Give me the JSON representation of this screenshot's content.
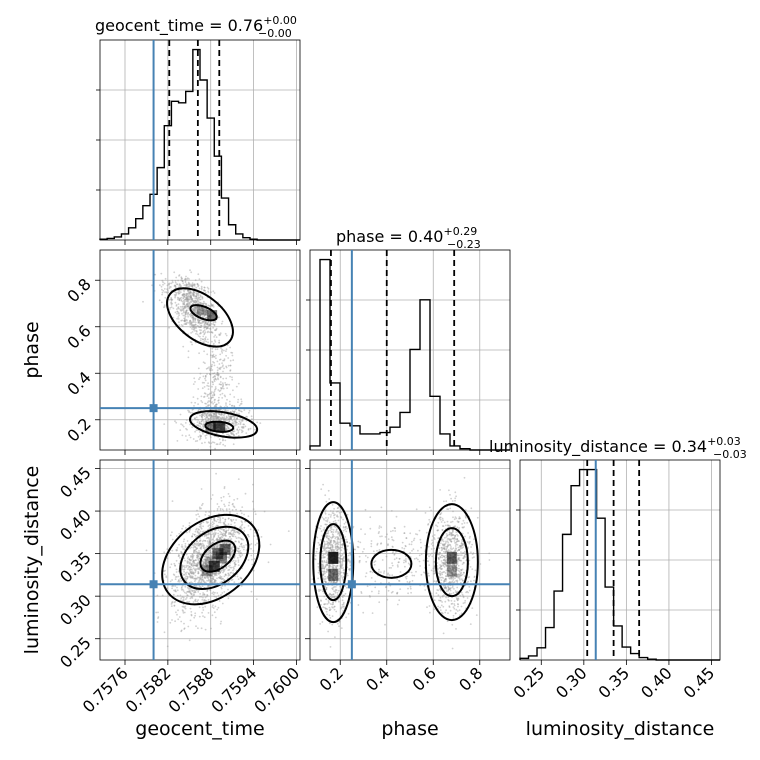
{
  "chart_data": {
    "type": "corner",
    "parameters": [
      "geocent_time",
      "phase",
      "luminosity_distance"
    ],
    "truths": {
      "geocent_time": 0.758,
      "phase": 0.25,
      "luminosity_distance": 0.314
    },
    "titles": [
      {
        "param": "geocent_time",
        "text": "geocent_time = 0.76",
        "sup": "+0.00",
        "sub": "−0.00"
      },
      {
        "param": "phase",
        "text": "phase = 0.40",
        "sup": "+0.29",
        "sub": "−0.23"
      },
      {
        "param": "luminosity_distance",
        "text": "luminosity_distance = 0.34",
        "sup": "+0.03",
        "sub": "−0.03"
      }
    ],
    "axes": {
      "geocent_time": {
        "range": [
          0.75725,
          0.76005
        ],
        "ticks": [
          0.7576,
          0.7582,
          0.7588,
          0.7594,
          0.76
        ],
        "tick_labels": [
          "0.7576",
          "0.7582",
          "0.7588",
          "0.7594",
          "0.7600"
        ]
      },
      "phase": {
        "range": [
          0.07,
          0.93
        ],
        "ticks": [
          0.2,
          0.4,
          0.6,
          0.8
        ],
        "tick_labels": [
          "0.2",
          "0.4",
          "0.6",
          "0.8"
        ]
      },
      "luminosity_distance": {
        "range": [
          0.225,
          0.46
        ],
        "ticks": [
          0.25,
          0.3,
          0.35,
          0.4,
          0.45
        ],
        "tick_labels": [
          "0.25",
          "0.30",
          "0.35",
          "0.40",
          "0.45"
        ]
      }
    },
    "histograms": [
      {
        "param": "geocent_time",
        "quantiles": [
          0.75822,
          0.75862,
          0.75892
        ],
        "bin_edges_start": 0.75725,
        "bin_width": 0.0001,
        "counts": [
          1,
          2,
          4,
          8,
          16,
          28,
          45,
          60,
          95,
          150,
          182,
          180,
          195,
          250,
          210,
          160,
          110,
          55,
          20,
          8,
          3,
          1,
          0,
          0,
          0,
          0,
          0,
          0
        ]
      },
      {
        "param": "phase",
        "quantiles": [
          0.16,
          0.4,
          0.69
        ],
        "bin_edges_start": 0.07,
        "bin_width": 0.043,
        "counts": [
          3,
          142,
          50,
          20,
          18,
          12,
          12,
          13,
          17,
          28,
          75,
          112,
          40,
          12,
          3,
          1,
          0,
          0,
          0,
          0
        ]
      },
      {
        "param": "luminosity_distance",
        "quantiles": [
          0.304,
          0.335,
          0.365
        ],
        "bin_edges_start": 0.225,
        "bin_width": 0.01,
        "counts": [
          2,
          5,
          15,
          40,
          85,
          155,
          215,
          235,
          235,
          175,
          90,
          42,
          16,
          8,
          3,
          1,
          0,
          0,
          0,
          0,
          0,
          0,
          0,
          0
        ]
      }
    ],
    "pairs": [
      {
        "x": "geocent_time",
        "y": "phase"
      },
      {
        "x": "geocent_time",
        "y": "luminosity_distance"
      },
      {
        "x": "phase",
        "y": "luminosity_distance"
      }
    ]
  }
}
